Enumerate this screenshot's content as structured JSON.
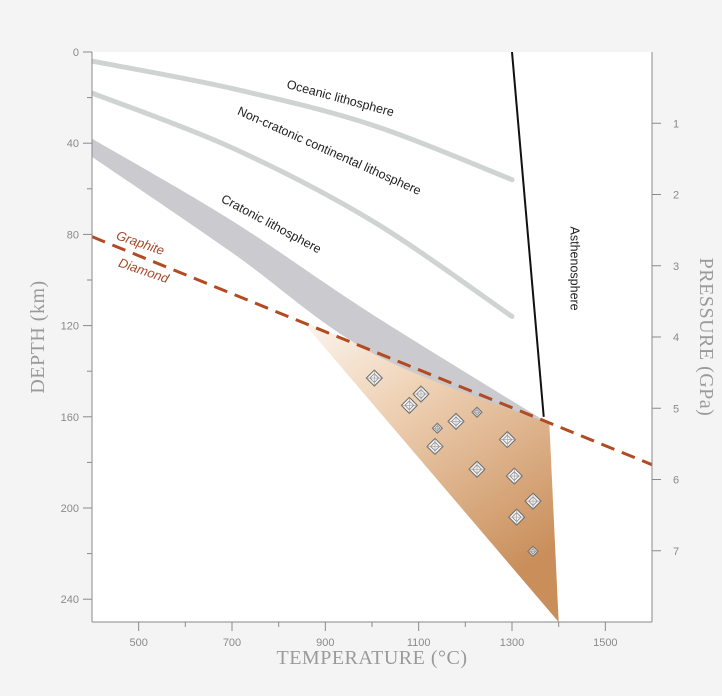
{
  "chart_data": {
    "type": "line",
    "xlabel": "TEMPERATURE (°C)",
    "ylabel": "DEPTH (km)",
    "y2label": "PRESSURE (GPa)",
    "xlim": [
      400,
      1600
    ],
    "ylim": [
      0,
      250
    ],
    "y2lim": [
      0,
      8
    ],
    "x_ticks": [
      500,
      700,
      900,
      1100,
      1300,
      1500
    ],
    "x_minor_ticks": [
      600,
      800,
      1000,
      1200,
      1400
    ],
    "y_ticks": [
      0,
      40,
      80,
      120,
      160,
      200,
      240
    ],
    "y_minor_ticks": [
      20,
      60,
      100,
      140,
      180,
      220
    ],
    "y2_ticks": [
      1,
      2,
      3,
      4,
      5,
      6,
      7
    ],
    "grid": false,
    "colors": {
      "background": "#f4f4f4",
      "plot_area": "#ffffff",
      "geotherm": "#cfd4d2",
      "cratonic_band": "#c8c8cc",
      "boundary": "#b24a22",
      "adiabat": "#111111",
      "diamond_zone_light": "#f7ede3",
      "diamond_zone_dark": "#c98e5a",
      "axis": "#8a8a8a"
    },
    "labels": {
      "oceanic": "Oceanic lithosphere",
      "noncratonic": "Non-cratonic continental lithosphere",
      "cratonic": "Cratonic lithosphere",
      "asthenosphere": "Asthenosphere",
      "graphite": "Graphite",
      "diamond": "Diamond"
    },
    "series": [
      {
        "name": "Oceanic lithosphere",
        "points": [
          [
            400,
            4
          ],
          [
            700,
            16
          ],
          [
            1000,
            32
          ],
          [
            1300,
            56
          ]
        ]
      },
      {
        "name": "Non-cratonic continental lithosphere",
        "points": [
          [
            400,
            18
          ],
          [
            700,
            42
          ],
          [
            1000,
            74
          ],
          [
            1300,
            116
          ]
        ]
      },
      {
        "name": "Cratonic lithosphere",
        "upper": [
          [
            400,
            38
          ],
          [
            700,
            74
          ],
          [
            1000,
            115
          ],
          [
            1380,
            163
          ]
        ],
        "lower": [
          [
            400,
            46
          ],
          [
            700,
            88
          ],
          [
            1000,
            132
          ],
          [
            1380,
            163
          ]
        ]
      },
      {
        "name": "Graphite–Diamond",
        "points": [
          [
            400,
            81
          ],
          [
            1600,
            181
          ]
        ]
      },
      {
        "name": "Asthenosphere",
        "points": [
          [
            1300,
            0
          ],
          [
            1368,
            160
          ]
        ]
      }
    ],
    "diamond_field": [
      [
        850,
        118
      ],
      [
        1380,
        163
      ],
      [
        1400,
        250
      ]
    ],
    "diamonds": [
      {
        "t": 1005,
        "d": 143,
        "size": "m"
      },
      {
        "t": 1080,
        "d": 155,
        "size": "m"
      },
      {
        "t": 1105,
        "d": 150,
        "size": "m"
      },
      {
        "t": 1140,
        "d": 165,
        "size": "s"
      },
      {
        "t": 1135,
        "d": 173,
        "size": "m"
      },
      {
        "t": 1180,
        "d": 162,
        "size": "m"
      },
      {
        "t": 1225,
        "d": 158,
        "size": "s"
      },
      {
        "t": 1290,
        "d": 170,
        "size": "m"
      },
      {
        "t": 1225,
        "d": 183,
        "size": "m"
      },
      {
        "t": 1305,
        "d": 186,
        "size": "m"
      },
      {
        "t": 1345,
        "d": 197,
        "size": "m"
      },
      {
        "t": 1310,
        "d": 204,
        "size": "m"
      },
      {
        "t": 1345,
        "d": 219,
        "size": "s"
      }
    ]
  }
}
